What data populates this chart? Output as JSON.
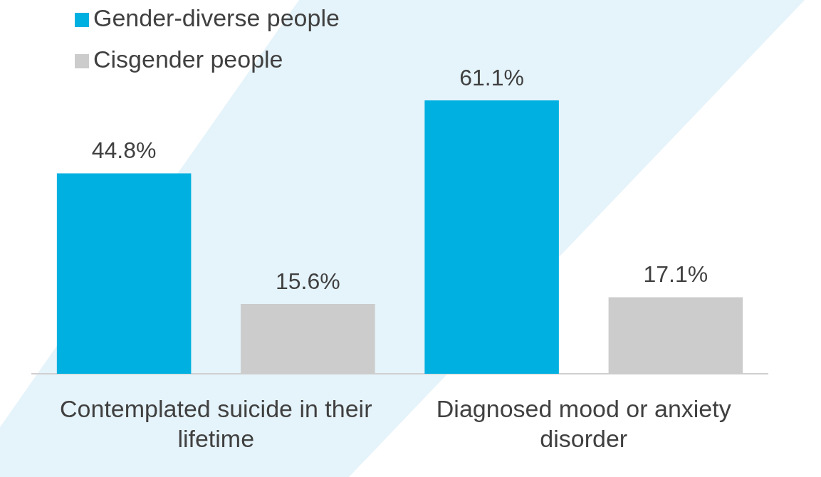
{
  "chart_data": {
    "type": "bar",
    "categories": [
      "Contemplated suicide in their lifetime",
      "Diagnosed mood or anxiety disorder"
    ],
    "series": [
      {
        "name": "Gender-diverse people",
        "color": "#00b0e0",
        "values": [
          44.8,
          61.1
        ],
        "value_labels": [
          "44.8%",
          "61.1%"
        ]
      },
      {
        "name": "Cisgender people",
        "color": "#cccccc",
        "values": [
          15.6,
          17.1
        ],
        "value_labels": [
          "15.6%",
          "17.1%"
        ]
      }
    ],
    "legend": "top left",
    "grid": false,
    "tick_labels": "x"
  }
}
